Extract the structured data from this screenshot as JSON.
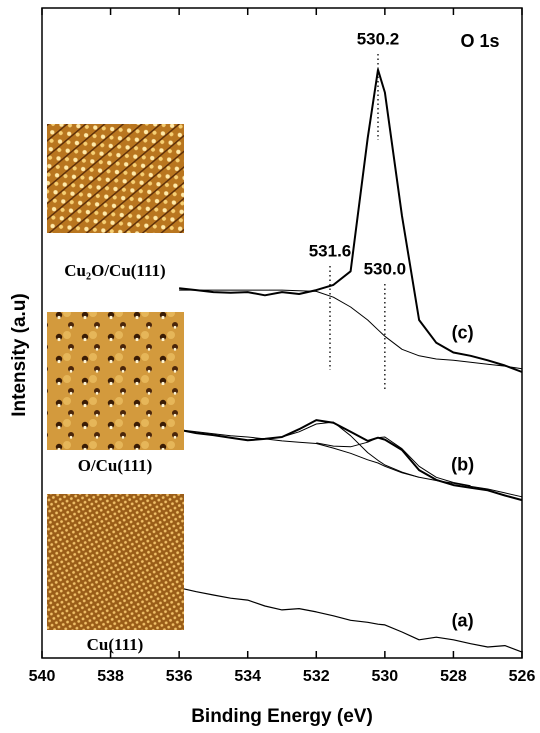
{
  "chart_data": {
    "type": "line",
    "title": "O 1s",
    "xlabel": "Binding Energy (eV)",
    "ylabel": "Intensity (a.u)",
    "xlim": [
      540,
      526
    ],
    "ylim": [
      0,
      100
    ],
    "xticks": [
      540,
      538,
      536,
      534,
      532,
      530,
      528,
      526
    ],
    "x": [
      536,
      535.5,
      535,
      534.5,
      534,
      533.5,
      533,
      532.5,
      532,
      531.5,
      531,
      530.5,
      530.2,
      530,
      529.5,
      529,
      528.5,
      528,
      527.5,
      527,
      526.5,
      526
    ],
    "series": [
      {
        "name": "(c)",
        "color": "#000000",
        "width": 2,
        "values": [
          56.9,
          56.6,
          56.3,
          56.2,
          56.3,
          55.8,
          56.3,
          56.0,
          56.6,
          57.4,
          59.5,
          80.0,
          90.5,
          87.0,
          68.0,
          52.0,
          48.5,
          47.0,
          46.5,
          45.8,
          45.0,
          44.0
        ]
      },
      {
        "color": "#000000",
        "width": 1,
        "values": [
          56.6,
          56.6,
          56.6,
          56.6,
          56.6,
          56.6,
          56.6,
          56.5,
          56.4,
          55.5,
          54.0,
          52.0,
          50.5,
          49.5,
          47.5,
          46.5,
          46.0,
          45.8,
          45.5,
          45.2,
          44.9,
          44.5
        ]
      },
      {
        "name": "(b)",
        "color": "#000000",
        "width": 2,
        "values": [
          35.1,
          34.6,
          34.3,
          33.9,
          33.5,
          33.7,
          34.0,
          35.2,
          36.6,
          36.2,
          34.8,
          33.4,
          33.9,
          33.6,
          32.0,
          28.9,
          27.4,
          26.6,
          26.2,
          25.8,
          25.0,
          24.3
        ]
      },
      {
        "color": "#000000",
        "width": 1,
        "values": [
          35.1,
          34.8,
          34.5,
          34.2,
          34.0,
          33.7,
          33.4,
          33.2,
          33.0,
          32.3,
          31.5,
          30.5,
          30.0,
          29.5,
          28.5,
          27.8,
          27.3,
          26.9,
          26.4,
          26.0,
          25.4,
          24.8
        ]
      },
      {
        "color": "#000000",
        "width": 1,
        "values": [
          null,
          null,
          null,
          null,
          null,
          33.7,
          34.0,
          34.8,
          36.0,
          36.3,
          34.2,
          31.6,
          30.4,
          29.7,
          28.6,
          27.8,
          null,
          null,
          null,
          null,
          null,
          null
        ]
      },
      {
        "color": "#000000",
        "width": 1,
        "values": [
          null,
          null,
          null,
          null,
          null,
          null,
          null,
          null,
          33.1,
          32.6,
          32.5,
          33.2,
          33.9,
          34.0,
          32.2,
          29.5,
          27.8,
          27.0,
          26.5,
          null,
          null,
          null
        ]
      },
      {
        "name": "(a)",
        "color": "#000000",
        "width": 1.2,
        "values": [
          10.8,
          10.2,
          9.7,
          9.2,
          8.9,
          8.0,
          7.4,
          7.6,
          7.1,
          6.5,
          5.8,
          5.5,
          5.2,
          5.1,
          4.0,
          2.8,
          3.2,
          2.8,
          2.2,
          1.7,
          1.9,
          0.9
        ]
      }
    ],
    "peaks": [
      {
        "value": 530.2,
        "label": "530.2"
      },
      {
        "value": 531.6,
        "label": "531.6"
      },
      {
        "value": 530,
        "label": "530.0"
      }
    ],
    "insets": [
      "Cu₂O/Cu(111)",
      "O/Cu(111)",
      "Cu(111)"
    ]
  }
}
